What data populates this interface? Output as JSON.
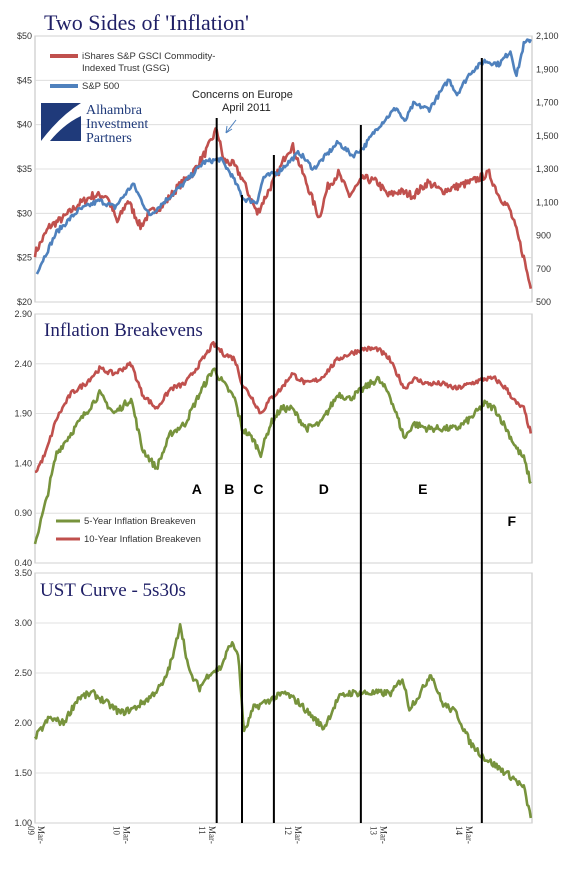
{
  "colors": {
    "commodity": "#C0504D",
    "sp500": "#4F81BD",
    "breakeven5": "#77933C",
    "breakeven10": "#C0504D",
    "curve": "#77933C",
    "title_text": "#1F1F66",
    "logo": "#1F3A7A",
    "divider": "#000000"
  },
  "logo": {
    "lines": [
      "Alhambra",
      "Investment",
      "Partners"
    ],
    "icon": "alhambra-logo-icon"
  },
  "annotation": {
    "lines": [
      "Concerns on Europe",
      "April 2011"
    ],
    "target_x": "2011-04-15"
  },
  "dividers": {
    "dates": [
      "2011-04-15",
      "2011-08-01",
      "2011-12-15",
      "2012-12-20",
      "2014-05-20"
    ],
    "labels": [
      {
        "text": "A",
        "x": "2011-01-20"
      },
      {
        "text": "B",
        "x": "2011-06-08"
      },
      {
        "text": "C",
        "x": "2011-10-10"
      },
      {
        "text": "D",
        "x": "2012-07-15"
      },
      {
        "text": "E",
        "x": "2013-09-10"
      },
      {
        "text": "F",
        "x": "2014-09-25"
      }
    ]
  },
  "chart_data": [
    {
      "type": "line",
      "title": "Two Sides of 'Inflation'",
      "ylim": [
        20,
        50
      ],
      "y_ticks": [
        "$20",
        "$25",
        "$30",
        "$35",
        "$40",
        "$45",
        "$50"
      ],
      "y2lim": [
        500,
        2100
      ],
      "y2_ticks": [
        "500",
        "700",
        "900",
        "1,100",
        "1,300",
        "1,500",
        "1,700",
        "1,900",
        "2,100"
      ],
      "legend": "top-left",
      "series": [
        {
          "name": "iShares S&P GSCI Commodity-Indexed Trust (GSG)",
          "axis": "left",
          "x": [
            "2009-03-01",
            "2009-05-01",
            "2009-07-01",
            "2009-09-01",
            "2009-11-01",
            "2010-01-01",
            "2010-02-15",
            "2010-04-01",
            "2010-05-25",
            "2010-07-01",
            "2010-09-01",
            "2010-11-01",
            "2011-01-01",
            "2011-03-01",
            "2011-04-15",
            "2011-05-15",
            "2011-06-25",
            "2011-08-01",
            "2011-09-01",
            "2011-10-05",
            "2011-12-01",
            "2012-01-10",
            "2012-02-10",
            "2012-03-05",
            "2012-05-01",
            "2012-06-25",
            "2012-08-01",
            "2012-09-15",
            "2012-11-01",
            "2013-01-01",
            "2013-03-01",
            "2013-04-15",
            "2013-06-01",
            "2013-08-01",
            "2013-10-01",
            "2013-12-01",
            "2014-02-01",
            "2014-04-01",
            "2014-06-20",
            "2014-08-01",
            "2014-09-15",
            "2014-10-15",
            "2014-11-15",
            "2014-12-15"
          ],
          "values": [
            25.5,
            28.5,
            29.5,
            31,
            32,
            32,
            29,
            31.5,
            28.5,
            30,
            31,
            33,
            34.5,
            37,
            39.5,
            36,
            35.5,
            34,
            32,
            30,
            33,
            35,
            37,
            37.5,
            33.5,
            29.5,
            33,
            34.5,
            32,
            34,
            33.5,
            32,
            32.5,
            32,
            33.5,
            32.5,
            33,
            33.5,
            34.5,
            32,
            30.5,
            28,
            25,
            21.5
          ]
        },
        {
          "name": "S&P 500",
          "axis": "right",
          "x": [
            "2009-03-09",
            "2009-06-01",
            "2009-09-01",
            "2009-12-01",
            "2010-02-05",
            "2010-04-23",
            "2010-07-02",
            "2010-09-01",
            "2010-12-01",
            "2011-02-18",
            "2011-05-01",
            "2011-06-15",
            "2011-08-08",
            "2011-10-03",
            "2011-11-01",
            "2012-01-01",
            "2012-04-01",
            "2012-06-01",
            "2012-09-14",
            "2012-11-15",
            "2013-01-01",
            "2013-03-01",
            "2013-05-21",
            "2013-06-24",
            "2013-08-01",
            "2013-10-08",
            "2013-12-31",
            "2014-02-03",
            "2014-04-01",
            "2014-06-01",
            "2014-08-01",
            "2014-09-19",
            "2014-10-15",
            "2014-11-15",
            "2014-12-15"
          ],
          "values": [
            680,
            920,
            1050,
            1110,
            1070,
            1210,
            1020,
            1100,
            1220,
            1340,
            1360,
            1270,
            1120,
            1100,
            1250,
            1280,
            1400,
            1300,
            1460,
            1380,
            1430,
            1550,
            1670,
            1580,
            1690,
            1660,
            1840,
            1750,
            1880,
            1950,
            1930,
            2010,
            1860,
            2050,
            2080
          ]
        }
      ]
    },
    {
      "type": "line",
      "title": "Inflation  Breakevens",
      "ylim": [
        0.4,
        2.9
      ],
      "y_ticks": [
        "0.40",
        "0.90",
        "1.40",
        "1.90",
        "2.40",
        "2.90"
      ],
      "legend": "bottom-left",
      "series": [
        {
          "name": "5-Year Inflation Breakeven",
          "x": [
            "2009-03-01",
            "2009-04-15",
            "2009-06-01",
            "2009-08-01",
            "2009-10-01",
            "2009-12-01",
            "2010-02-01",
            "2010-04-15",
            "2010-06-01",
            "2010-08-01",
            "2010-10-01",
            "2010-12-01",
            "2011-02-01",
            "2011-04-01",
            "2011-05-15",
            "2011-07-01",
            "2011-08-01",
            "2011-09-15",
            "2011-10-20",
            "2011-12-01",
            "2012-01-15",
            "2012-03-01",
            "2012-05-01",
            "2012-07-01",
            "2012-09-15",
            "2012-11-01",
            "2013-01-01",
            "2013-03-01",
            "2013-04-20",
            "2013-06-25",
            "2013-08-01",
            "2013-10-01",
            "2013-12-01",
            "2014-02-01",
            "2014-04-01",
            "2014-06-01",
            "2014-07-15",
            "2014-09-01",
            "2014-10-15",
            "2014-11-15",
            "2014-12-15"
          ],
          "values": [
            0.6,
            1.0,
            1.5,
            1.7,
            1.9,
            2.1,
            1.9,
            2.05,
            1.55,
            1.35,
            1.7,
            1.8,
            2.1,
            2.35,
            2.2,
            2.05,
            1.75,
            1.65,
            1.5,
            1.8,
            1.95,
            1.95,
            1.75,
            1.8,
            2.1,
            2.05,
            2.15,
            2.25,
            2.1,
            1.65,
            1.8,
            1.75,
            1.75,
            1.75,
            1.85,
            2.0,
            1.95,
            1.75,
            1.55,
            1.45,
            1.2
          ]
        },
        {
          "name": "10-Year Inflation Breakeven",
          "x": [
            "2009-03-01",
            "2009-04-15",
            "2009-06-01",
            "2009-08-01",
            "2009-10-01",
            "2009-12-01",
            "2010-02-01",
            "2010-04-15",
            "2010-06-01",
            "2010-08-01",
            "2010-10-01",
            "2010-12-01",
            "2011-02-01",
            "2011-04-01",
            "2011-05-15",
            "2011-07-01",
            "2011-08-01",
            "2011-09-15",
            "2011-10-20",
            "2011-12-01",
            "2012-01-15",
            "2012-03-01",
            "2012-05-01",
            "2012-07-01",
            "2012-09-15",
            "2012-11-01",
            "2013-01-01",
            "2013-03-01",
            "2013-04-20",
            "2013-06-25",
            "2013-08-01",
            "2013-10-01",
            "2013-12-01",
            "2014-02-01",
            "2014-04-01",
            "2014-06-01",
            "2014-07-15",
            "2014-09-01",
            "2014-10-15",
            "2014-11-15",
            "2014-12-15"
          ],
          "values": [
            1.3,
            1.5,
            1.85,
            2.1,
            2.2,
            2.35,
            2.3,
            2.4,
            2.1,
            1.95,
            2.15,
            2.2,
            2.4,
            2.6,
            2.5,
            2.45,
            2.2,
            2.05,
            1.9,
            2.05,
            2.15,
            2.3,
            2.2,
            2.25,
            2.45,
            2.5,
            2.55,
            2.55,
            2.45,
            2.15,
            2.25,
            2.2,
            2.2,
            2.15,
            2.2,
            2.25,
            2.25,
            2.15,
            2.0,
            1.95,
            1.7
          ]
        }
      ]
    },
    {
      "type": "line",
      "title": "UST Curve - 5s30s",
      "ylim": [
        1.0,
        3.5
      ],
      "y_ticks": [
        "1.00",
        "1.50",
        "2.00",
        "2.50",
        "3.00",
        "3.50"
      ],
      "x_ticks": [
        {
          "date": "2009-03-01",
          "label": "Mar-\n09"
        },
        {
          "date": "2010-03-01",
          "label": "Mar-\n10"
        },
        {
          "date": "2011-03-01",
          "label": "Mar-\n11"
        },
        {
          "date": "2012-03-01",
          "label": "Mar-\n12"
        },
        {
          "date": "2013-03-01",
          "label": "Mar-\n13"
        },
        {
          "date": "2014-03-01",
          "label": "Mar-\n14"
        }
      ],
      "series": [
        {
          "x": [
            "2009-03-01",
            "2009-05-01",
            "2009-07-01",
            "2009-09-01",
            "2009-11-01",
            "2010-01-01",
            "2010-03-01",
            "2010-05-01",
            "2010-07-01",
            "2010-09-01",
            "2010-10-15",
            "2010-11-10",
            "2010-12-20",
            "2011-02-01",
            "2011-03-15",
            "2011-05-01",
            "2011-06-15",
            "2011-07-15",
            "2011-08-10",
            "2011-09-20",
            "2011-11-01",
            "2011-12-15",
            "2012-02-01",
            "2012-04-01",
            "2012-06-01",
            "2012-07-15",
            "2012-09-15",
            "2012-11-01",
            "2013-01-01",
            "2013-03-01",
            "2013-05-01",
            "2013-06-15",
            "2013-07-15",
            "2013-09-01",
            "2013-10-15",
            "2013-12-01",
            "2014-02-01",
            "2014-04-01",
            "2014-06-01",
            "2014-08-01",
            "2014-10-01",
            "2014-11-15",
            "2014-12-15"
          ],
          "values": [
            1.85,
            2.05,
            2.0,
            2.25,
            2.3,
            2.2,
            2.1,
            2.15,
            2.25,
            2.4,
            2.7,
            3.0,
            2.5,
            2.35,
            2.5,
            2.55,
            2.8,
            2.7,
            1.9,
            2.15,
            2.2,
            2.25,
            2.3,
            2.2,
            2.05,
            1.95,
            2.25,
            2.3,
            2.3,
            2.3,
            2.3,
            2.45,
            2.15,
            2.3,
            2.5,
            2.2,
            2.1,
            1.8,
            1.65,
            1.55,
            1.45,
            1.35,
            1.05
          ]
        }
      ]
    }
  ]
}
